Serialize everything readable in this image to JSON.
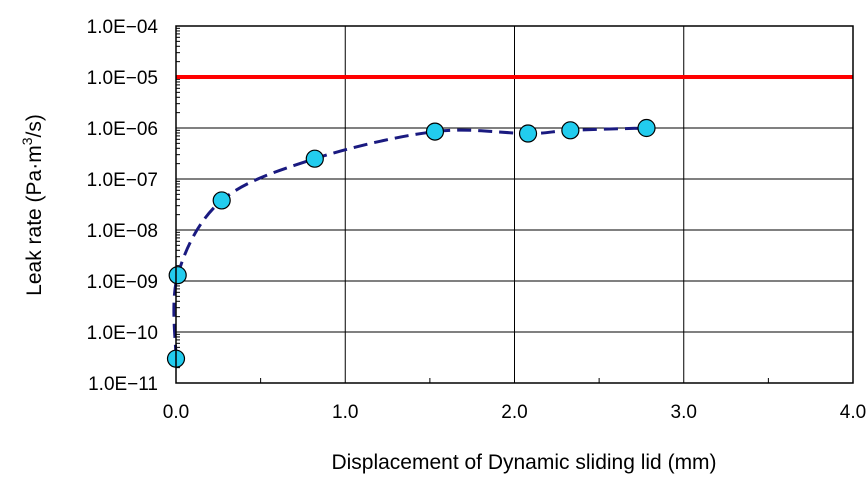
{
  "chart_data": {
    "type": "scatter",
    "title": "",
    "xlabel": "Displacement of Dynamic sliding lid (mm)",
    "ylabel": {
      "prefix": "Leak rate (Pa·m",
      "superscript": "3",
      "suffix": "/s)"
    },
    "xlim": [
      0.0,
      4.0
    ],
    "ylim": [
      1e-11,
      0.0001
    ],
    "y_scale": "log",
    "grid": true,
    "x_ticks": [
      0.0,
      1.0,
      2.0,
      3.0,
      4.0
    ],
    "x_tick_labels": [
      "0.0",
      "1.0",
      "2.0",
      "3.0",
      "4.0"
    ],
    "y_ticks": [
      1e-11,
      1e-10,
      1e-09,
      1e-08,
      1e-07,
      1e-06,
      1e-05,
      0.0001
    ],
    "y_tick_labels": [
      "1.0E−11",
      "1.0E−10",
      "1.0E−09",
      "1.0E−08",
      "1.0E−07",
      "1.0E−06",
      "1.0E−05",
      "1.0E−04"
    ],
    "series": [
      {
        "style": "dashed-line-with-markers",
        "line_color": "#1a1a80",
        "marker_color": "#22ccee",
        "x": [
          0.0,
          0.01,
          0.27,
          0.82,
          1.53,
          2.08,
          2.33,
          2.78
        ],
        "y": [
          3e-11,
          1.3e-09,
          3.8e-08,
          2.5e-07,
          8.5e-07,
          7.8e-07,
          9e-07,
          1e-06
        ]
      }
    ],
    "reference_lines": [
      {
        "y": 1e-05,
        "color": "#ff0000"
      }
    ]
  }
}
